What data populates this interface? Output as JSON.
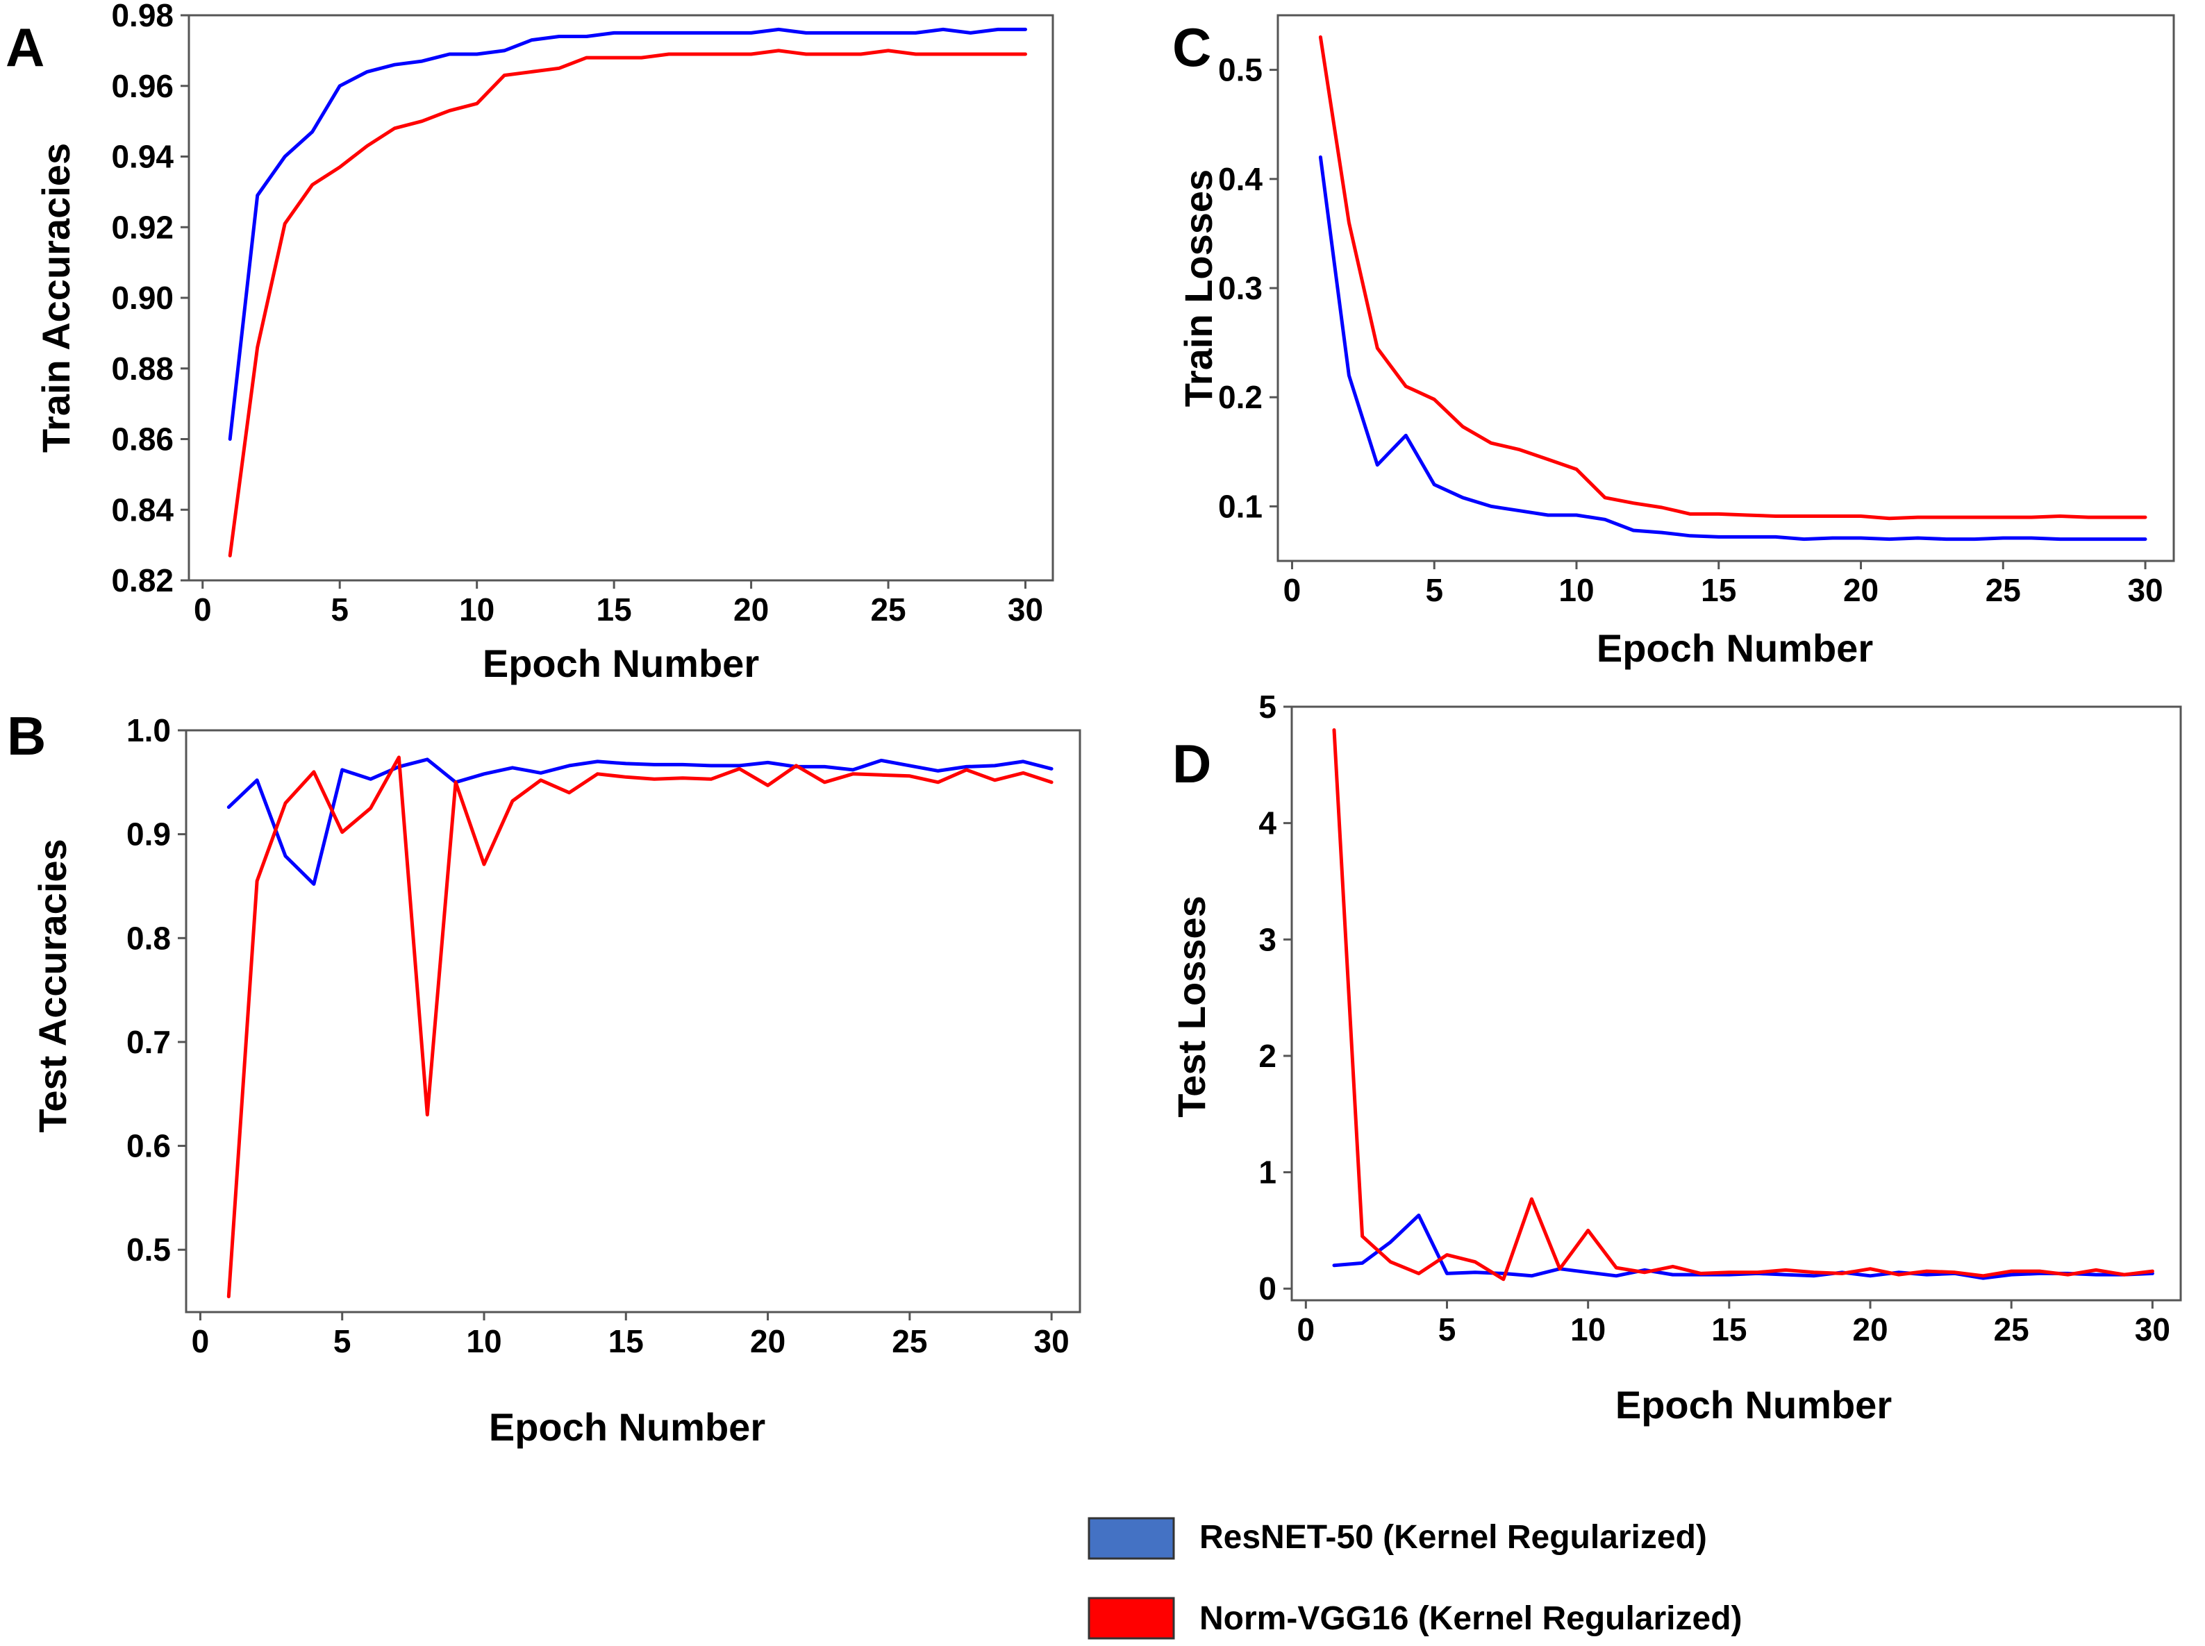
{
  "colors": {
    "resnet": "#0000ff",
    "vgg": "#ff0000",
    "legend_resnet": "#4472c4",
    "legend_vgg": "#ff0000"
  },
  "legend": {
    "items": [
      {
        "label": "ResNET-50 (Kernel Regularized)",
        "color": "#4472c4"
      },
      {
        "label": "Norm-VGG16 (Kernel Regularized)",
        "color": "#ff0000"
      }
    ]
  },
  "chart_data": [
    {
      "panel": "A",
      "type": "line",
      "xlabel": "Epoch Number",
      "ylabel": "Train Accuracies",
      "xlim": [
        -0.5,
        31
      ],
      "ylim": [
        0.82,
        0.98
      ],
      "xticks": [
        0,
        5,
        10,
        15,
        20,
        25,
        30
      ],
      "yticks": [
        0.82,
        0.84,
        0.86,
        0.88,
        0.9,
        0.92,
        0.94,
        0.96,
        0.98
      ],
      "ytick_labels": [
        "0.82",
        "0.84",
        "0.86",
        "0.88",
        "0.90",
        "0.92",
        "0.94",
        "0.96",
        "0.98"
      ],
      "x": [
        1,
        2,
        3,
        4,
        5,
        6,
        7,
        8,
        9,
        10,
        11,
        12,
        13,
        14,
        15,
        16,
        17,
        18,
        19,
        20,
        21,
        22,
        23,
        24,
        25,
        26,
        27,
        28,
        29,
        30
      ],
      "series": [
        {
          "name": "ResNET-50 (Kernel Regularized)",
          "color": "#0000ff",
          "values": [
            0.86,
            0.929,
            0.94,
            0.947,
            0.96,
            0.964,
            0.966,
            0.967,
            0.969,
            0.969,
            0.97,
            0.973,
            0.974,
            0.974,
            0.975,
            0.975,
            0.975,
            0.975,
            0.975,
            0.975,
            0.976,
            0.975,
            0.975,
            0.975,
            0.975,
            0.975,
            0.976,
            0.975,
            0.976,
            0.976
          ]
        },
        {
          "name": "Norm-VGG16 (Kernel Regularized)",
          "color": "#ff0000",
          "values": [
            0.827,
            0.886,
            0.921,
            0.932,
            0.937,
            0.943,
            0.948,
            0.95,
            0.953,
            0.955,
            0.963,
            0.964,
            0.965,
            0.968,
            0.968,
            0.968,
            0.969,
            0.969,
            0.969,
            0.969,
            0.97,
            0.969,
            0.969,
            0.969,
            0.97,
            0.969,
            0.969,
            0.969,
            0.969,
            0.969
          ]
        }
      ]
    },
    {
      "panel": "B",
      "type": "line",
      "xlabel": "Epoch Number",
      "ylabel": "Test Accuracies",
      "xlim": [
        -0.5,
        31
      ],
      "ylim": [
        0.44,
        1.0
      ],
      "xticks": [
        0,
        5,
        10,
        15,
        20,
        25,
        30
      ],
      "yticks": [
        0.5,
        0.6,
        0.7,
        0.8,
        0.9,
        1.0
      ],
      "ytick_labels": [
        "0.5",
        "0.6",
        "0.7",
        "0.8",
        "0.9",
        "1.0"
      ],
      "x": [
        1,
        2,
        3,
        4,
        5,
        6,
        7,
        8,
        9,
        10,
        11,
        12,
        13,
        14,
        15,
        16,
        17,
        18,
        19,
        20,
        21,
        22,
        23,
        24,
        25,
        26,
        27,
        28,
        29,
        30
      ],
      "series": [
        {
          "name": "ResNET-50 (Kernel Regularized)",
          "color": "#0000ff",
          "values": [
            0.926,
            0.952,
            0.879,
            0.852,
            0.962,
            0.953,
            0.965,
            0.972,
            0.95,
            0.958,
            0.964,
            0.959,
            0.966,
            0.97,
            0.968,
            0.967,
            0.967,
            0.966,
            0.966,
            0.969,
            0.965,
            0.965,
            0.962,
            0.971,
            0.966,
            0.961,
            0.965,
            0.966,
            0.97,
            0.963
          ]
        },
        {
          "name": "Norm-VGG16 (Kernel Regularized)",
          "color": "#ff0000",
          "values": [
            0.455,
            0.855,
            0.93,
            0.96,
            0.902,
            0.925,
            0.974,
            0.63,
            0.95,
            0.871,
            0.932,
            0.952,
            0.94,
            0.958,
            0.955,
            0.953,
            0.954,
            0.953,
            0.963,
            0.947,
            0.966,
            0.95,
            0.958,
            0.957,
            0.956,
            0.95,
            0.962,
            0.952,
            0.959,
            0.95
          ]
        }
      ]
    },
    {
      "panel": "C",
      "type": "line",
      "xlabel": "Epoch Number",
      "ylabel": "Train Losses",
      "xlim": [
        -0.5,
        31
      ],
      "ylim": [
        0.05,
        0.55
      ],
      "xticks": [
        0,
        5,
        10,
        15,
        20,
        25,
        30
      ],
      "yticks": [
        0.1,
        0.2,
        0.3,
        0.4,
        0.5
      ],
      "ytick_labels": [
        "0.1",
        "0.2",
        "0.3",
        "0.4",
        "0.5"
      ],
      "x": [
        1,
        2,
        3,
        4,
        5,
        6,
        7,
        8,
        9,
        10,
        11,
        12,
        13,
        14,
        15,
        16,
        17,
        18,
        19,
        20,
        21,
        22,
        23,
        24,
        25,
        26,
        27,
        28,
        29,
        30
      ],
      "series": [
        {
          "name": "ResNET-50 (Kernel Regularized)",
          "color": "#0000ff",
          "values": [
            0.42,
            0.22,
            0.138,
            0.165,
            0.12,
            0.108,
            0.1,
            0.096,
            0.092,
            0.092,
            0.088,
            0.078,
            0.076,
            0.073,
            0.072,
            0.072,
            0.072,
            0.07,
            0.071,
            0.071,
            0.07,
            0.071,
            0.07,
            0.07,
            0.071,
            0.071,
            0.07,
            0.07,
            0.07,
            0.07
          ]
        },
        {
          "name": "Norm-VGG16 (Kernel Regularized)",
          "color": "#ff0000",
          "values": [
            0.53,
            0.36,
            0.245,
            0.21,
            0.198,
            0.173,
            0.158,
            0.152,
            0.143,
            0.134,
            0.108,
            0.103,
            0.099,
            0.093,
            0.093,
            0.092,
            0.091,
            0.091,
            0.091,
            0.091,
            0.089,
            0.09,
            0.09,
            0.09,
            0.09,
            0.09,
            0.091,
            0.09,
            0.09,
            0.09
          ]
        }
      ]
    },
    {
      "panel": "D",
      "type": "line",
      "xlabel": "Epoch Number",
      "ylabel": "Test Losses",
      "xlim": [
        -0.5,
        31
      ],
      "ylim": [
        -0.1,
        5.0
      ],
      "xticks": [
        0,
        5,
        10,
        15,
        20,
        25,
        30
      ],
      "yticks": [
        0,
        1,
        2,
        3,
        4,
        5
      ],
      "ytick_labels": [
        "0",
        "1",
        "2",
        "3",
        "4",
        "5"
      ],
      "x": [
        1,
        2,
        3,
        4,
        5,
        6,
        7,
        8,
        9,
        10,
        11,
        12,
        13,
        14,
        15,
        16,
        17,
        18,
        19,
        20,
        21,
        22,
        23,
        24,
        25,
        26,
        27,
        28,
        29,
        30
      ],
      "series": [
        {
          "name": "ResNET-50 (Kernel Regularized)",
          "color": "#0000ff",
          "values": [
            0.2,
            0.22,
            0.4,
            0.63,
            0.13,
            0.14,
            0.13,
            0.11,
            0.17,
            0.14,
            0.11,
            0.16,
            0.12,
            0.12,
            0.12,
            0.13,
            0.12,
            0.11,
            0.14,
            0.11,
            0.14,
            0.12,
            0.13,
            0.09,
            0.12,
            0.13,
            0.13,
            0.12,
            0.12,
            0.13
          ]
        },
        {
          "name": "Norm-VGG16 (Kernel Regularized)",
          "color": "#ff0000",
          "values": [
            4.8,
            0.45,
            0.23,
            0.13,
            0.29,
            0.23,
            0.08,
            0.77,
            0.17,
            0.5,
            0.18,
            0.14,
            0.19,
            0.13,
            0.14,
            0.14,
            0.16,
            0.14,
            0.13,
            0.17,
            0.12,
            0.15,
            0.14,
            0.11,
            0.15,
            0.15,
            0.12,
            0.16,
            0.12,
            0.15
          ]
        }
      ]
    }
  ]
}
